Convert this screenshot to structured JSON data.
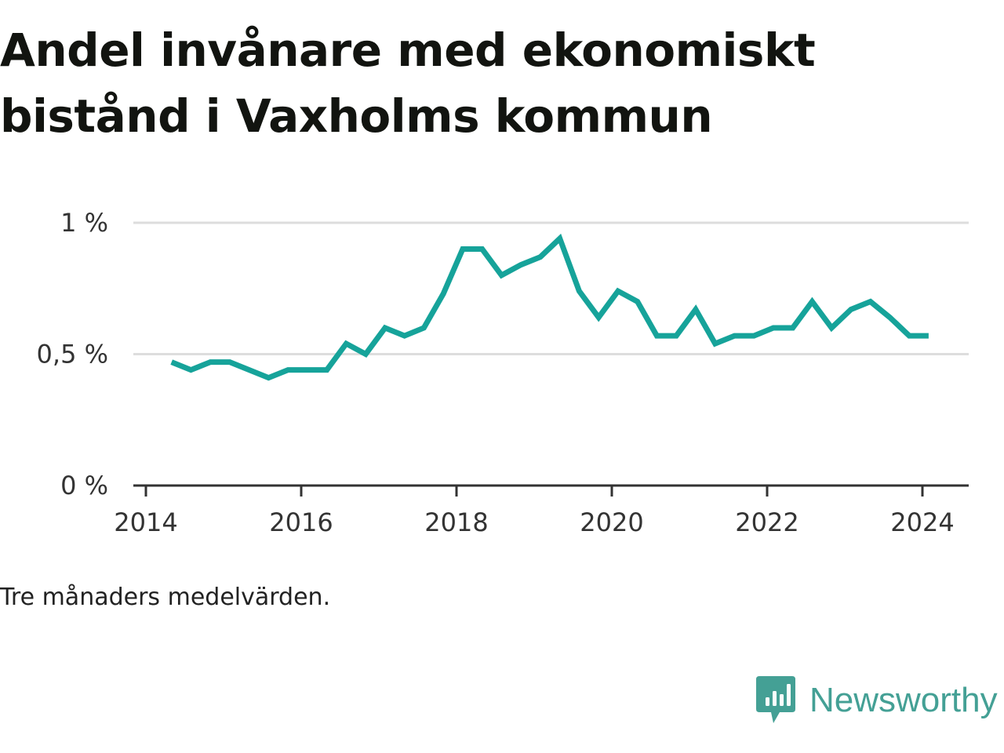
{
  "title": "Andel invånare med ekonomiskt bistånd i Vaxholms kommun",
  "caption": "Tre månaders medelvärden.",
  "brand": {
    "name": "Newsworthy",
    "icon": "newsworthy-logo-icon",
    "color": "#44a095"
  },
  "colors": {
    "line": "#16a39a",
    "grid": "#dddddd",
    "axis": "#333333"
  },
  "chart_data": {
    "type": "line",
    "title": "Andel invånare med ekonomiskt bistånd i Vaxholms kommun",
    "xlabel": "",
    "ylabel": "",
    "xlim": [
      2014,
      2024.35
    ],
    "ylim": [
      0,
      1
    ],
    "x_ticks": [
      2014,
      2016,
      2018,
      2020,
      2022,
      2024
    ],
    "x_tick_labels": [
      "2014",
      "2016",
      "2018",
      "2020",
      "2022",
      "2024"
    ],
    "y_ticks": [
      0,
      0.5,
      1
    ],
    "y_tick_labels": [
      "0 %",
      "0,5 %",
      "1 %"
    ],
    "grid": true,
    "series": [
      {
        "x": [
          2014.33,
          2014.58,
          2014.83,
          2015.08,
          2015.33,
          2015.58,
          2015.83,
          2016.08,
          2016.33,
          2016.58,
          2016.83,
          2017.08,
          2017.33,
          2017.58,
          2017.83,
          2018.08,
          2018.33,
          2018.58,
          2018.83,
          2019.08,
          2019.33,
          2019.58,
          2019.83,
          2020.08,
          2020.33,
          2020.58,
          2020.83,
          2021.08,
          2021.33,
          2021.58,
          2021.83,
          2022.08,
          2022.33,
          2022.58,
          2022.83,
          2023.08,
          2023.33,
          2023.58,
          2023.83,
          2024.08
        ],
        "y": [
          0.47,
          0.44,
          0.47,
          0.47,
          0.44,
          0.41,
          0.44,
          0.44,
          0.44,
          0.54,
          0.5,
          0.6,
          0.57,
          0.6,
          0.73,
          0.9,
          0.9,
          0.8,
          0.84,
          0.87,
          0.94,
          0.74,
          0.64,
          0.74,
          0.7,
          0.57,
          0.57,
          0.67,
          0.54,
          0.57,
          0.57,
          0.6,
          0.6,
          0.7,
          0.6,
          0.67,
          0.7,
          0.64,
          0.57,
          0.57
        ]
      }
    ]
  }
}
